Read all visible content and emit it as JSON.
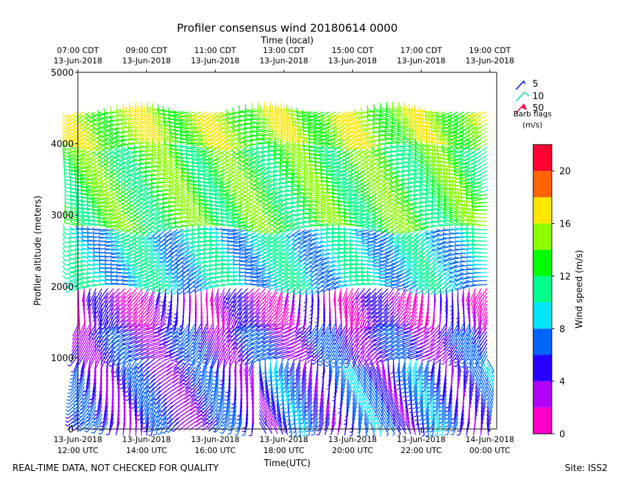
{
  "chart_data": {
    "type": "wind-barb",
    "title": "Profiler consensus wind 20180614 0000",
    "top_axis_label": "Time (local)",
    "xlabel": "Time(UTC)",
    "ylabel": "Profiler altitude (meters)",
    "ylim": [
      0,
      5000
    ],
    "y_ticks": [
      0,
      1000,
      2000,
      3000,
      4000,
      5000
    ],
    "xlim_hours_utc": [
      12,
      24.2
    ],
    "bottom_ticks": [
      {
        "hour": 12,
        "line1": "13-Jun-2018",
        "line2": "12:00 UTC"
      },
      {
        "hour": 14,
        "line1": "13-Jun-2018",
        "line2": "14:00 UTC"
      },
      {
        "hour": 16,
        "line1": "13-Jun-2018",
        "line2": "16:00 UTC"
      },
      {
        "hour": 18,
        "line1": "13-Jun-2018",
        "line2": "18:00 UTC"
      },
      {
        "hour": 20,
        "line1": "13-Jun-2018",
        "line2": "20:00 UTC"
      },
      {
        "hour": 22,
        "line1": "13-Jun-2018",
        "line2": "22:00 UTC"
      },
      {
        "hour": 24,
        "line1": "14-Jun-2018",
        "line2": "00:00 UTC"
      }
    ],
    "top_ticks": [
      {
        "hour": 12,
        "line1": "07:00 CDT",
        "line2": "13-Jun-2018"
      },
      {
        "hour": 14,
        "line1": "09:00 CDT",
        "line2": "13-Jun-2018"
      },
      {
        "hour": 16,
        "line1": "11:00 CDT",
        "line2": "13-Jun-2018"
      },
      {
        "hour": 18,
        "line1": "13:00 CDT",
        "line2": "13-Jun-2018"
      },
      {
        "hour": 20,
        "line1": "15:00 CDT",
        "line2": "13-Jun-2018"
      },
      {
        "hour": 22,
        "line1": "17:00 CDT",
        "line2": "13-Jun-2018"
      },
      {
        "hour": 24,
        "line1": "19:00 CDT",
        "line2": "13-Jun-2018"
      }
    ],
    "legend": {
      "entries": [
        {
          "label": "5",
          "color": "#1010dd"
        },
        {
          "label": "10",
          "color": "#00e5a0"
        },
        {
          "label": "50",
          "color": "#ff0040"
        }
      ],
      "caption_line1": "Barb flags",
      "caption_line2": "(m/s)"
    },
    "colorbar": {
      "label": "Wind speed (m/s)",
      "min": 0,
      "max": 22,
      "ticks": [
        0,
        4,
        8,
        12,
        16,
        20
      ],
      "bins": [
        {
          "from": 0,
          "to": 2,
          "color": "#ff00c8"
        },
        {
          "from": 2,
          "to": 4,
          "color": "#b400ff"
        },
        {
          "from": 4,
          "to": 6,
          "color": "#2800ff"
        },
        {
          "from": 6,
          "to": 8,
          "color": "#0064ff"
        },
        {
          "from": 8,
          "to": 10,
          "color": "#00e6ff"
        },
        {
          "from": 10,
          "to": 12,
          "color": "#00ff8c"
        },
        {
          "from": 12,
          "to": 14,
          "color": "#00ff00"
        },
        {
          "from": 14,
          "to": 16,
          "color": "#8cff00"
        },
        {
          "from": 16,
          "to": 18,
          "color": "#ffe600"
        },
        {
          "from": 18,
          "to": 20,
          "color": "#ff6400"
        },
        {
          "from": 20,
          "to": 22,
          "color": "#ff0032"
        }
      ]
    },
    "time_step_hours": 0.17,
    "height_step_m": 55,
    "speed_regimes": [
      {
        "h_from": 0,
        "h_to": 1000,
        "t_from": 12,
        "t_to": 17.2,
        "speed": 5,
        "dir": 210
      },
      {
        "h_from": 0,
        "h_to": 1000,
        "t_from": 17.2,
        "t_to": 24.2,
        "speed": 6,
        "dir": 175
      },
      {
        "h_from": 1000,
        "h_to": 1500,
        "t_from": 12,
        "t_to": 24.2,
        "speed": 5,
        "dir": 230
      },
      {
        "h_from": 1500,
        "h_to": 2000,
        "t_from": 12,
        "t_to": 24.2,
        "speed": 3,
        "dir": 200
      },
      {
        "h_from": 2000,
        "h_to": 2800,
        "t_from": 12,
        "t_to": 24.2,
        "speed": 9,
        "dir": 250
      },
      {
        "h_from": 2800,
        "h_to": 4000,
        "t_from": 12,
        "t_to": 24.2,
        "speed": 13,
        "dir": 260
      },
      {
        "h_from": 4000,
        "h_to": 4500,
        "t_from": 12,
        "t_to": 24.2,
        "speed": 15,
        "dir": 265
      }
    ]
  },
  "footer": {
    "disclaimer": "REAL-TIME DATA, NOT CHECKED FOR QUALITY",
    "site": "Site: ISS2"
  }
}
